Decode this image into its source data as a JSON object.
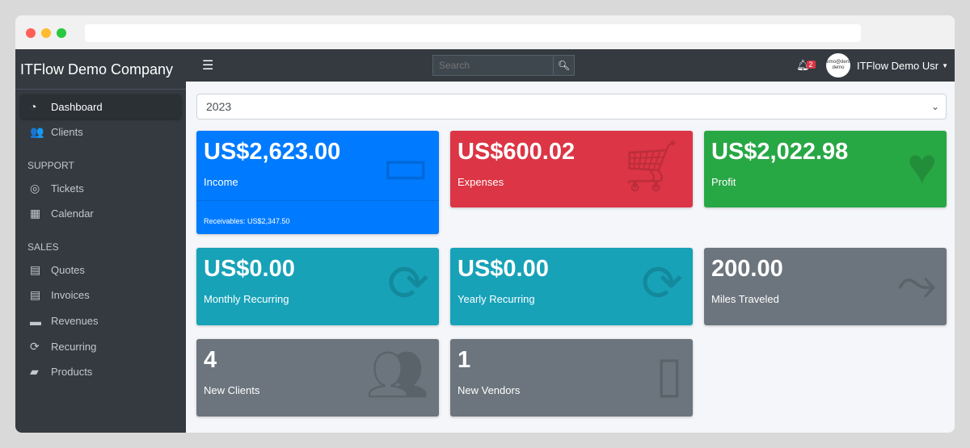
{
  "sidebar": {
    "brand": "ITFlow Demo Company",
    "items": [
      {
        "label": "Dashboard",
        "icon": "tachometer-icon"
      },
      {
        "label": "Clients",
        "icon": "users-icon"
      }
    ],
    "support_header": "SUPPORT",
    "support": [
      {
        "label": "Tickets",
        "icon": "life-ring-icon"
      },
      {
        "label": "Calendar",
        "icon": "calendar-icon"
      }
    ],
    "sales_header": "SALES",
    "sales": [
      {
        "label": "Quotes",
        "icon": "file-icon"
      },
      {
        "label": "Invoices",
        "icon": "invoice-icon"
      },
      {
        "label": "Revenues",
        "icon": "credit-card-icon"
      },
      {
        "label": "Recurring",
        "icon": "sync-icon"
      },
      {
        "label": "Products",
        "icon": "box-icon"
      }
    ]
  },
  "topbar": {
    "search_placeholder": "Search",
    "notification_count": "2",
    "avatar_text": "demo@demo demo",
    "user": "ITFlow Demo Usr"
  },
  "year_select": "2023",
  "cards": [
    {
      "value": "US$2,623.00",
      "label": "Income",
      "footer": "Receivables: US$2,347.50",
      "color": "#007bff",
      "icon": "credit-card-icon"
    },
    {
      "value": "US$600.02",
      "label": "Expenses",
      "color": "#dc3545",
      "icon": "shopping-cart-icon"
    },
    {
      "value": "US$2,022.98",
      "label": "Profit",
      "color": "#28a745",
      "icon": "heart-icon"
    },
    {
      "value": "US$0.00",
      "label": "Monthly Recurring",
      "color": "#17a2b8",
      "icon": "sync-icon"
    },
    {
      "value": "US$0.00",
      "label": "Yearly Recurring",
      "color": "#17a2b8",
      "icon": "sync-icon"
    },
    {
      "value": "200.00",
      "label": "Miles Traveled",
      "color": "#6c757d",
      "icon": "route-icon"
    },
    {
      "value": "4",
      "label": "New Clients",
      "color": "#6c757d",
      "icon": "users-icon"
    },
    {
      "value": "1",
      "label": "New Vendors",
      "color": "#6c757d",
      "icon": "building-icon"
    }
  ]
}
